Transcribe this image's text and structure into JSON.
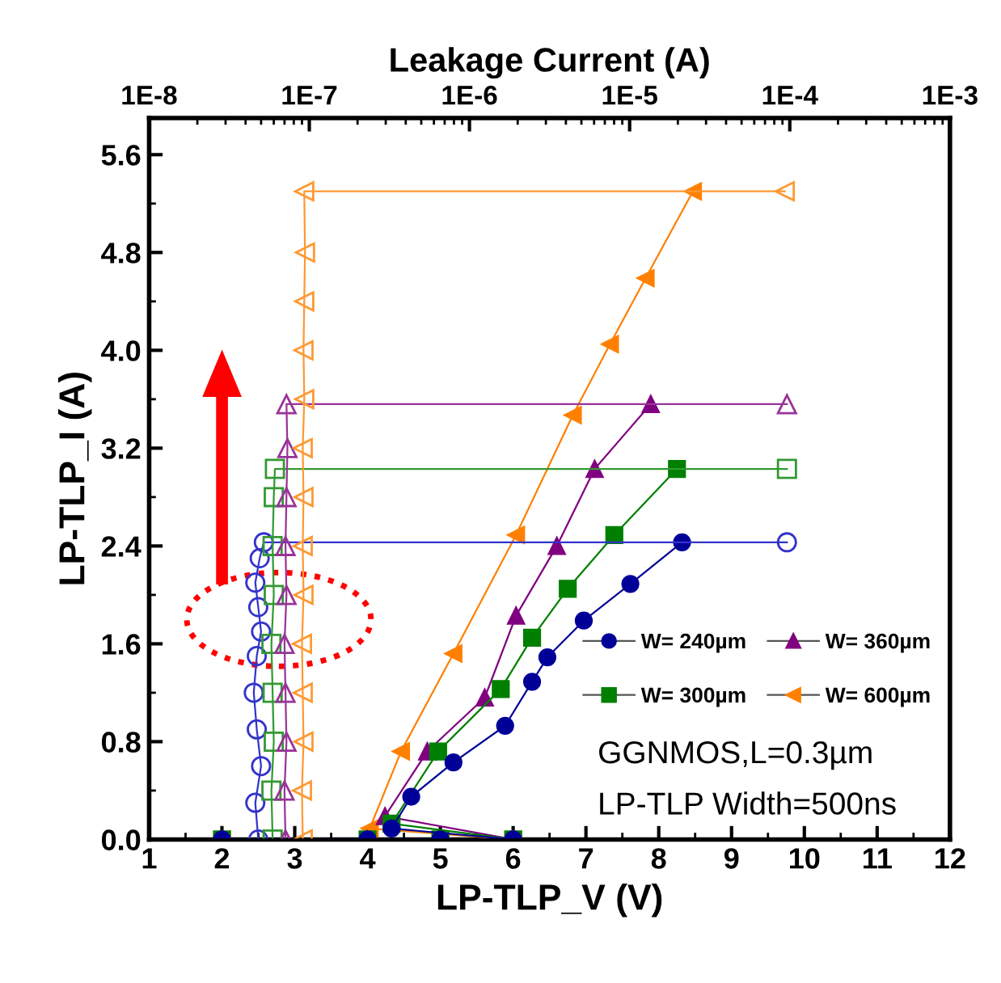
{
  "chart_data": {
    "type": "line",
    "xlabel": "LP-TLP_V (V)",
    "ylabel": "LP-TLP_I (A)",
    "x2label": "Leakage Current (A)",
    "xlim": [
      1,
      12
    ],
    "xticks": [
      1,
      2,
      3,
      4,
      5,
      6,
      7,
      8,
      9,
      10,
      11,
      12
    ],
    "ylim": [
      0,
      5.9
    ],
    "yticks": [
      {
        "value": 0,
        "label": "0.0"
      },
      0.8,
      1.6,
      2.4,
      3.2,
      {
        "value": 4,
        "label": "4.0"
      },
      4.8,
      5.6
    ],
    "x2lim": [
      1e-08,
      0.001
    ],
    "x2ticks": [
      {
        "value": 1e-08,
        "label": "1E-8"
      },
      {
        "value": 1e-07,
        "label": "1E-7"
      },
      {
        "value": 1e-06,
        "label": "1E-6"
      },
      {
        "value": 1e-05,
        "label": "1E-5"
      },
      {
        "value": 0.0001,
        "label": "1E-4"
      },
      {
        "value": 0.001,
        "label": "1E-3"
      }
    ],
    "log": "x2",
    "grid": false,
    "legend": "right",
    "line_style": "solid",
    "series": [
      {
        "name": "W= 240µm",
        "color": "#000099",
        "marker": "circle",
        "x": [
          2,
          4,
          5,
          6,
          4.33,
          4.6,
          5.18,
          5.89,
          6.26,
          6.47,
          6.97,
          7.61,
          8.32
        ],
        "values": [
          0,
          0,
          0,
          0,
          0.09,
          0.35,
          0.63,
          0.93,
          1.29,
          1.49,
          1.79,
          2.09,
          2.43
        ]
      },
      {
        "name": "W= 300µm",
        "color": "#008000",
        "marker": "square",
        "x": [
          2,
          4,
          5,
          6,
          4.33,
          4.97,
          5.83,
          6.26,
          6.75,
          7.39,
          8.25
        ],
        "values": [
          0,
          0,
          0,
          0,
          0.13,
          0.72,
          1.23,
          1.65,
          2.05,
          2.49,
          3.03
        ]
      },
      {
        "name": "W= 360µm",
        "color": "#800080",
        "marker": "triangle",
        "x": [
          2,
          4,
          5,
          6,
          4.24,
          4.82,
          5.61,
          6.04,
          6.6,
          7.12,
          7.89
        ],
        "values": [
          0,
          0,
          0,
          0,
          0.19,
          0.72,
          1.16,
          1.83,
          2.4,
          3.03,
          3.56
        ]
      },
      {
        "name": "W= 600µm",
        "color": "#ff8000",
        "marker": "triangle-left",
        "x": [
          2,
          4,
          5,
          6,
          4.03,
          4.46,
          5.18,
          6.04,
          6.82,
          7.33,
          7.82,
          8.47
        ],
        "values": [
          0,
          0,
          0,
          0,
          0.09,
          0.72,
          1.52,
          2.49,
          3.47,
          4.05,
          4.59,
          5.3
        ]
      },
      {
        "axis": "x2",
        "color": "#3333cc",
        "marker": "circle",
        "x": [
          4.8e-08,
          4.6e-08,
          5e-08,
          4.7e-08,
          4.5e-08,
          4.7e-08,
          5e-08,
          4.8e-08,
          4.6e-08,
          4.9e-08,
          5.2e-08,
          9.6e-05
        ],
        "values": [
          0,
          0.3,
          0.6,
          0.9,
          1.2,
          1.5,
          1.7,
          1.9,
          2.1,
          2.3,
          2.43,
          2.43
        ]
      },
      {
        "axis": "x2",
        "color": "#339933",
        "marker": "square",
        "x": [
          5.9e-08,
          5.8e-08,
          6e-08,
          5.9e-08,
          5.8e-08,
          6e-08,
          5.9e-08,
          6e-08,
          6.1e-08,
          9.6e-05
        ],
        "values": [
          0,
          0.4,
          0.8,
          1.2,
          1.6,
          2,
          2.4,
          2.8,
          3.03,
          3.03
        ]
      },
      {
        "axis": "x2",
        "color": "#993399",
        "marker": "triangle",
        "x": [
          7.1e-08,
          7e-08,
          7.2e-08,
          7.1e-08,
          7e-08,
          7.2e-08,
          7.1e-08,
          7.2e-08,
          7.3e-08,
          7.2e-08,
          9.6e-05
        ],
        "values": [
          0,
          0.4,
          0.8,
          1.2,
          1.6,
          2,
          2.4,
          2.8,
          3.2,
          3.56,
          3.56
        ]
      },
      {
        "axis": "x2",
        "color": "#ff9933",
        "marker": "triangle-left",
        "x": [
          9.1e-08,
          9e-08,
          9.2e-08,
          9.1e-08,
          9e-08,
          9.2e-08,
          9.1e-08,
          9.2e-08,
          9.1e-08,
          9.3e-08,
          9.2e-08,
          9.3e-08,
          9.4e-08,
          9.3e-08,
          9.3e-05
        ],
        "values": [
          0,
          0.4,
          0.8,
          1.2,
          1.6,
          2,
          2.4,
          2.8,
          3.2,
          3.6,
          4,
          4.4,
          4.8,
          5.3,
          5.3
        ]
      }
    ],
    "annotations": [
      "GGNMOS,L=0.3µm",
      "LP-TLP Width=500ns"
    ]
  }
}
